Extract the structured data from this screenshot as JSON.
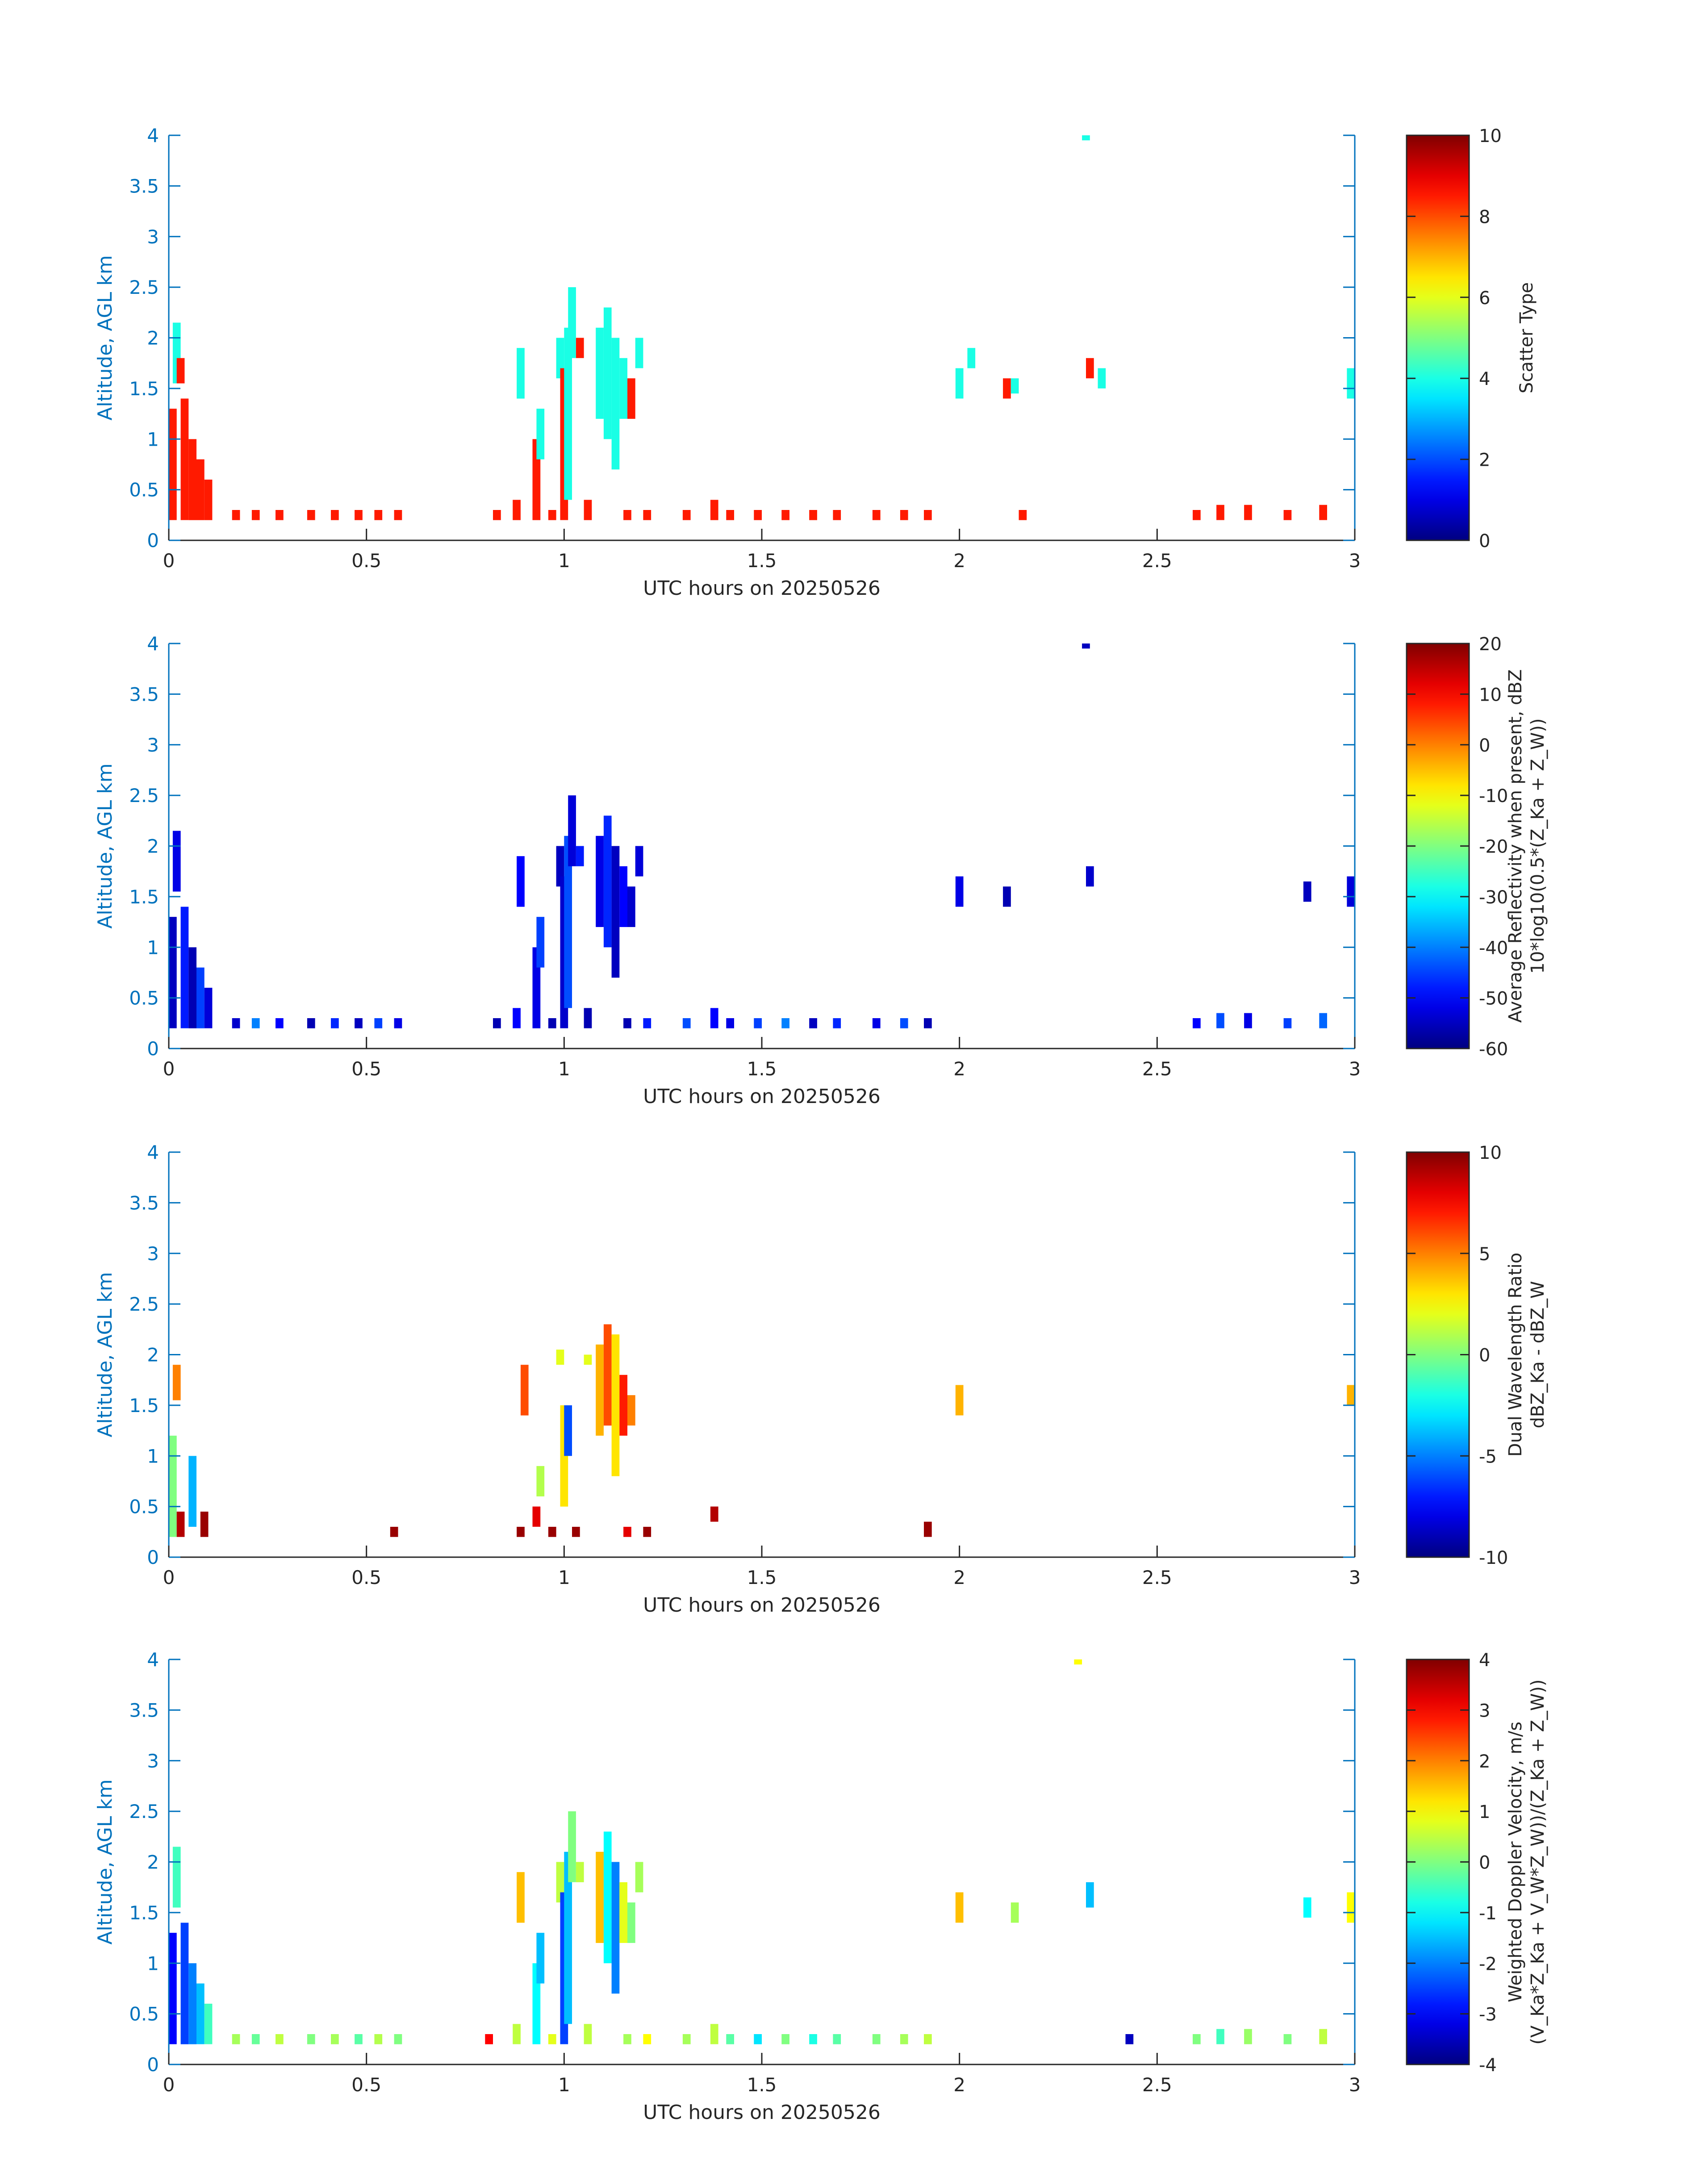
{
  "figure": {
    "xlabel": "UTC hours on 20250526",
    "ylabel": "Altitude, AGL km",
    "x_ticks": [
      "0",
      "0.5",
      "1",
      "1.5",
      "2",
      "2.5",
      "3"
    ],
    "y_ticks": [
      "0",
      "0.5",
      "1",
      "1.5",
      "2",
      "2.5",
      "3",
      "3.5",
      "4"
    ],
    "axis_color": "#0072BD",
    "text_color": "#262626"
  },
  "chart_data": [
    {
      "type": "heatmap",
      "title": "",
      "xlabel": "UTC hours on 20250526",
      "ylabel": "Altitude, AGL km",
      "xlim": [
        0,
        3
      ],
      "ylim": [
        0,
        4
      ],
      "colorbar": {
        "label_lines": [
          "Scatter Type"
        ],
        "range": [
          0,
          10
        ],
        "ticks": [
          "0",
          "2",
          "4",
          "6",
          "8",
          "10"
        ],
        "colormap": "jet"
      },
      "cells": [
        [
          0.0,
          0.2,
          1.3,
          8.5
        ],
        [
          0.01,
          1.55,
          2.15,
          4
        ],
        [
          0.02,
          1.55,
          1.8,
          8.5
        ],
        [
          0.03,
          0.2,
          1.4,
          8.5
        ],
        [
          0.05,
          0.2,
          1.0,
          8.5
        ],
        [
          0.07,
          0.2,
          0.8,
          8.5
        ],
        [
          0.09,
          0.2,
          0.6,
          8.5
        ],
        [
          0.16,
          0.2,
          0.3,
          8.5
        ],
        [
          0.21,
          0.2,
          0.3,
          8.5
        ],
        [
          0.27,
          0.2,
          0.3,
          8.5
        ],
        [
          0.35,
          0.2,
          0.3,
          8.5
        ],
        [
          0.41,
          0.2,
          0.3,
          8.5
        ],
        [
          0.47,
          0.2,
          0.3,
          8.5
        ],
        [
          0.52,
          0.2,
          0.3,
          8.5
        ],
        [
          0.57,
          0.2,
          0.3,
          8.5
        ],
        [
          0.82,
          0.2,
          0.3,
          8.5
        ],
        [
          0.87,
          0.2,
          0.4,
          8.5
        ],
        [
          0.88,
          1.4,
          1.9,
          4
        ],
        [
          0.92,
          0.2,
          1.0,
          8.5
        ],
        [
          0.93,
          0.8,
          1.3,
          4
        ],
        [
          0.96,
          0.2,
          0.3,
          8.5
        ],
        [
          0.98,
          1.6,
          2.0,
          4
        ],
        [
          0.99,
          0.2,
          1.7,
          8.5
        ],
        [
          1.0,
          0.4,
          2.1,
          4
        ],
        [
          1.01,
          1.8,
          2.5,
          4
        ],
        [
          1.03,
          1.8,
          2.0,
          8.5
        ],
        [
          1.05,
          0.2,
          0.4,
          8.5
        ],
        [
          1.08,
          1.2,
          2.1,
          4
        ],
        [
          1.1,
          1.0,
          2.3,
          4
        ],
        [
          1.12,
          0.7,
          2.0,
          4
        ],
        [
          1.14,
          1.2,
          1.8,
          4
        ],
        [
          1.15,
          0.2,
          0.3,
          8.5
        ],
        [
          1.16,
          1.2,
          1.6,
          8.5
        ],
        [
          1.18,
          1.7,
          2.0,
          4
        ],
        [
          1.2,
          0.2,
          0.3,
          8.5
        ],
        [
          1.3,
          0.2,
          0.3,
          8.5
        ],
        [
          1.37,
          0.2,
          0.4,
          8.5
        ],
        [
          1.41,
          0.2,
          0.3,
          8.5
        ],
        [
          1.48,
          0.2,
          0.3,
          8.5
        ],
        [
          1.55,
          0.2,
          0.3,
          8.5
        ],
        [
          1.62,
          0.2,
          0.3,
          8.5
        ],
        [
          1.68,
          0.2,
          0.3,
          8.5
        ],
        [
          1.78,
          0.2,
          0.3,
          8.5
        ],
        [
          1.85,
          0.2,
          0.3,
          8.5
        ],
        [
          1.91,
          0.2,
          0.3,
          8.5
        ],
        [
          1.99,
          1.4,
          1.7,
          4
        ],
        [
          2.02,
          1.7,
          1.9,
          4
        ],
        [
          2.11,
          1.4,
          1.6,
          8.5
        ],
        [
          2.13,
          1.45,
          1.6,
          4
        ],
        [
          2.15,
          0.2,
          0.3,
          8.5
        ],
        [
          2.32,
          1.6,
          1.8,
          8.5
        ],
        [
          2.35,
          1.5,
          1.7,
          4
        ],
        [
          2.31,
          3.95,
          4.0,
          4
        ],
        [
          2.59,
          0.2,
          0.3,
          8.5
        ],
        [
          2.65,
          0.2,
          0.35,
          8.5
        ],
        [
          2.72,
          0.2,
          0.35,
          8.5
        ],
        [
          2.82,
          0.2,
          0.3,
          8.5
        ],
        [
          2.91,
          0.2,
          0.35,
          8.5
        ],
        [
          2.98,
          1.4,
          1.7,
          4
        ]
      ]
    },
    {
      "type": "heatmap",
      "title": "",
      "xlabel": "UTC hours on 20250526",
      "ylabel": "Altitude, AGL km",
      "xlim": [
        0,
        3
      ],
      "ylim": [
        0,
        4
      ],
      "colorbar": {
        "label_lines": [
          "Average Reflectivity when present, dBZ",
          "10*log10(0.5*(Z_Ka + Z_W))"
        ],
        "range": [
          -60,
          20
        ],
        "ticks": [
          "-60",
          "-50",
          "-40",
          "-30",
          "-20",
          "-10",
          "0",
          "10",
          "20"
        ],
        "colormap": "jet"
      },
      "cells": [
        [
          0.0,
          0.2,
          1.3,
          -55
        ],
        [
          0.01,
          1.55,
          2.15,
          -52
        ],
        [
          0.03,
          0.2,
          1.4,
          -48
        ],
        [
          0.05,
          0.2,
          1.0,
          -56
        ],
        [
          0.07,
          0.2,
          0.8,
          -45
        ],
        [
          0.09,
          0.2,
          0.6,
          -53
        ],
        [
          0.16,
          0.2,
          0.3,
          -54
        ],
        [
          0.21,
          0.2,
          0.3,
          -40
        ],
        [
          0.27,
          0.2,
          0.3,
          -50
        ],
        [
          0.35,
          0.2,
          0.3,
          -56
        ],
        [
          0.41,
          0.2,
          0.3,
          -47
        ],
        [
          0.47,
          0.2,
          0.3,
          -55
        ],
        [
          0.52,
          0.2,
          0.3,
          -45
        ],
        [
          0.57,
          0.2,
          0.3,
          -52
        ],
        [
          0.82,
          0.2,
          0.3,
          -56
        ],
        [
          0.87,
          0.2,
          0.4,
          -50
        ],
        [
          0.88,
          1.4,
          1.9,
          -50
        ],
        [
          0.92,
          0.2,
          1.0,
          -52
        ],
        [
          0.93,
          0.8,
          1.3,
          -45
        ],
        [
          0.96,
          0.2,
          0.3,
          -56
        ],
        [
          0.98,
          1.6,
          2.0,
          -55
        ],
        [
          0.99,
          0.2,
          1.7,
          -54
        ],
        [
          1.0,
          0.4,
          2.1,
          -44
        ],
        [
          1.01,
          1.8,
          2.5,
          -53
        ],
        [
          1.03,
          1.8,
          2.0,
          -48
        ],
        [
          1.05,
          0.2,
          0.4,
          -56
        ],
        [
          1.08,
          1.2,
          2.1,
          -52
        ],
        [
          1.1,
          1.0,
          2.3,
          -47
        ],
        [
          1.12,
          0.7,
          2.0,
          -55
        ],
        [
          1.14,
          1.2,
          1.8,
          -50
        ],
        [
          1.15,
          0.2,
          0.3,
          -56
        ],
        [
          1.16,
          1.2,
          1.6,
          -54
        ],
        [
          1.18,
          1.7,
          2.0,
          -53
        ],
        [
          1.2,
          0.2,
          0.3,
          -48
        ],
        [
          1.3,
          0.2,
          0.3,
          -44
        ],
        [
          1.37,
          0.2,
          0.4,
          -50
        ],
        [
          1.41,
          0.2,
          0.3,
          -52
        ],
        [
          1.48,
          0.2,
          0.3,
          -45
        ],
        [
          1.55,
          0.2,
          0.3,
          -40
        ],
        [
          1.62,
          0.2,
          0.3,
          -55
        ],
        [
          1.68,
          0.2,
          0.3,
          -47
        ],
        [
          1.78,
          0.2,
          0.3,
          -52
        ],
        [
          1.85,
          0.2,
          0.3,
          -44
        ],
        [
          1.91,
          0.2,
          0.3,
          -56
        ],
        [
          1.99,
          1.4,
          1.7,
          -52
        ],
        [
          2.11,
          1.4,
          1.6,
          -56
        ],
        [
          2.32,
          1.6,
          1.8,
          -54
        ],
        [
          2.31,
          3.95,
          4.0,
          -55
        ],
        [
          2.59,
          0.2,
          0.3,
          -50
        ],
        [
          2.65,
          0.2,
          0.35,
          -44
        ],
        [
          2.72,
          0.2,
          0.35,
          -52
        ],
        [
          2.82,
          0.2,
          0.3,
          -45
        ],
        [
          2.87,
          1.45,
          1.65,
          -55
        ],
        [
          2.91,
          0.2,
          0.35,
          -42
        ],
        [
          2.98,
          1.4,
          1.7,
          -53
        ]
      ]
    },
    {
      "type": "heatmap",
      "title": "",
      "xlabel": "UTC hours on 20250526",
      "ylabel": "Altitude, AGL km",
      "xlim": [
        0,
        3
      ],
      "ylim": [
        0,
        4
      ],
      "colorbar": {
        "label_lines": [
          "Dual Wavelength Ratio",
          "dBZ_Ka - dBZ_W"
        ],
        "range": [
          -10,
          10
        ],
        "ticks": [
          "-10",
          "-5",
          "0",
          "5",
          "10"
        ],
        "colormap": "jet"
      },
      "cells": [
        [
          0.0,
          0.2,
          1.2,
          0
        ],
        [
          0.01,
          1.55,
          1.9,
          5
        ],
        [
          0.02,
          0.2,
          0.45,
          9
        ],
        [
          0.05,
          0.3,
          1.0,
          -4
        ],
        [
          0.08,
          0.2,
          0.45,
          9.5
        ],
        [
          0.56,
          0.2,
          0.3,
          9.5
        ],
        [
          0.88,
          0.2,
          0.3,
          9.5
        ],
        [
          0.89,
          1.4,
          1.9,
          6
        ],
        [
          0.92,
          0.3,
          0.5,
          8
        ],
        [
          0.93,
          0.6,
          0.9,
          1
        ],
        [
          0.96,
          0.2,
          0.3,
          9.5
        ],
        [
          0.98,
          1.9,
          2.05,
          2
        ],
        [
          0.99,
          0.5,
          1.5,
          3
        ],
        [
          1.0,
          1.0,
          1.5,
          -6
        ],
        [
          1.02,
          0.2,
          0.3,
          9.5
        ],
        [
          1.05,
          1.9,
          2.0,
          2
        ],
        [
          1.08,
          1.2,
          2.1,
          4
        ],
        [
          1.1,
          1.3,
          2.3,
          6
        ],
        [
          1.12,
          0.8,
          2.2,
          3
        ],
        [
          1.14,
          1.2,
          1.8,
          7
        ],
        [
          1.15,
          0.2,
          0.3,
          8
        ],
        [
          1.16,
          1.3,
          1.6,
          5
        ],
        [
          1.2,
          0.2,
          0.3,
          9.5
        ],
        [
          1.37,
          0.35,
          0.5,
          9
        ],
        [
          1.91,
          0.2,
          0.35,
          9.5
        ],
        [
          1.99,
          1.4,
          1.7,
          4
        ],
        [
          2.98,
          1.5,
          1.7,
          4
        ]
      ]
    },
    {
      "type": "heatmap",
      "title": "",
      "xlabel": "UTC hours on 20250526",
      "ylabel": "Altitude, AGL km",
      "xlim": [
        0,
        3
      ],
      "ylim": [
        0,
        4
      ],
      "colorbar": {
        "label_lines": [
          "Weighted Doppler Velocity, m/s",
          "(V_Ka*Z_Ka + V_W*Z_W))/(Z_Ka + Z_W))"
        ],
        "range": [
          -4,
          4
        ],
        "ticks": [
          "-4",
          "-3",
          "-2",
          "-1",
          "0",
          "1",
          "2",
          "3",
          "4"
        ],
        "colormap": "jet"
      },
      "cells": [
        [
          0.0,
          0.2,
          1.3,
          -3
        ],
        [
          0.01,
          1.55,
          2.15,
          -0.5
        ],
        [
          0.03,
          0.2,
          1.4,
          -2.5
        ],
        [
          0.05,
          0.2,
          1.0,
          -2
        ],
        [
          0.07,
          0.2,
          0.8,
          -1.5
        ],
        [
          0.09,
          0.2,
          0.6,
          -0.5
        ],
        [
          0.16,
          0.2,
          0.3,
          0.3
        ],
        [
          0.21,
          0.2,
          0.3,
          -0.2
        ],
        [
          0.27,
          0.2,
          0.3,
          0.5
        ],
        [
          0.35,
          0.2,
          0.3,
          0
        ],
        [
          0.41,
          0.2,
          0.3,
          0.3
        ],
        [
          0.47,
          0.2,
          0.3,
          -0.3
        ],
        [
          0.52,
          0.2,
          0.3,
          0.4
        ],
        [
          0.57,
          0.2,
          0.3,
          0
        ],
        [
          0.8,
          0.2,
          0.3,
          3
        ],
        [
          0.87,
          0.2,
          0.4,
          0.5
        ],
        [
          0.88,
          1.4,
          1.9,
          1.5
        ],
        [
          0.92,
          0.2,
          1.0,
          -1
        ],
        [
          0.93,
          0.8,
          1.3,
          -1.5
        ],
        [
          0.96,
          0.2,
          0.3,
          0.8
        ],
        [
          0.98,
          1.6,
          2.0,
          0.5
        ],
        [
          0.99,
          0.2,
          1.7,
          -2.5
        ],
        [
          1.0,
          0.4,
          2.1,
          -1.5
        ],
        [
          1.01,
          1.8,
          2.5,
          0
        ],
        [
          1.03,
          1.8,
          2.0,
          0.5
        ],
        [
          1.05,
          0.2,
          0.4,
          0.5
        ],
        [
          1.08,
          1.2,
          2.1,
          1.5
        ],
        [
          1.1,
          1.0,
          2.3,
          -1
        ],
        [
          1.12,
          0.7,
          2.0,
          -2
        ],
        [
          1.14,
          1.2,
          1.8,
          0.8
        ],
        [
          1.15,
          0.2,
          0.3,
          0.3
        ],
        [
          1.16,
          1.2,
          1.6,
          0
        ],
        [
          1.18,
          1.7,
          2.0,
          0.3
        ],
        [
          1.2,
          0.2,
          0.3,
          1
        ],
        [
          1.3,
          0.2,
          0.3,
          0.3
        ],
        [
          1.37,
          0.2,
          0.4,
          0.5
        ],
        [
          1.41,
          0.2,
          0.3,
          -0.3
        ],
        [
          1.48,
          0.2,
          0.3,
          -1.2
        ],
        [
          1.55,
          0.2,
          0.3,
          0
        ],
        [
          1.62,
          0.2,
          0.3,
          -0.8
        ],
        [
          1.68,
          0.2,
          0.3,
          -0.3
        ],
        [
          1.78,
          0.2,
          0.3,
          0
        ],
        [
          1.85,
          0.2,
          0.3,
          0.3
        ],
        [
          1.91,
          0.2,
          0.3,
          0.5
        ],
        [
          1.99,
          1.4,
          1.7,
          1.5
        ],
        [
          2.13,
          1.4,
          1.6,
          0.3
        ],
        [
          2.32,
          1.55,
          1.8,
          -1.5
        ],
        [
          2.29,
          3.95,
          4.0,
          1
        ],
        [
          2.42,
          0.2,
          0.3,
          -3.5
        ],
        [
          2.59,
          0.2,
          0.3,
          0
        ],
        [
          2.65,
          0.2,
          0.35,
          -0.5
        ],
        [
          2.72,
          0.2,
          0.35,
          0.2
        ],
        [
          2.82,
          0.2,
          0.3,
          0
        ],
        [
          2.87,
          1.45,
          1.65,
          -1
        ],
        [
          2.91,
          0.2,
          0.35,
          0.5
        ],
        [
          2.98,
          1.4,
          1.7,
          1
        ]
      ]
    }
  ]
}
